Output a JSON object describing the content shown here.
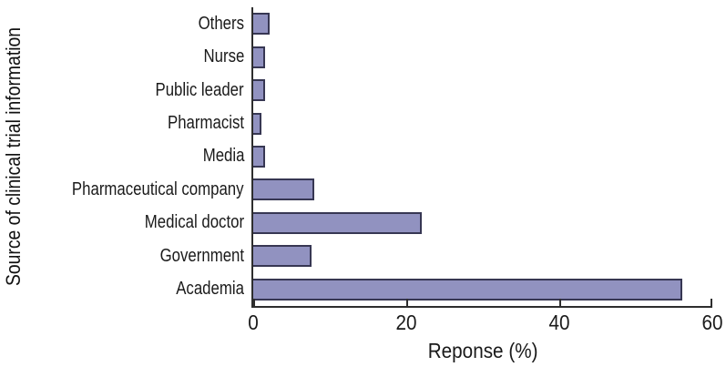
{
  "chart_data": {
    "type": "bar",
    "orientation": "horizontal",
    "title": "",
    "categories": [
      "Others",
      "Nurse",
      "Public leader",
      "Pharmacist",
      "Media",
      "Pharmaceutical company",
      "Medical doctor",
      "Government",
      "Academia"
    ],
    "values": [
      2.2,
      1.5,
      1.5,
      1.1,
      1.5,
      8.0,
      22.0,
      7.6,
      56.1
    ],
    "xlabel": "Reponse (%)",
    "ylabel": "Source of clinical trial information",
    "xlim": [
      0,
      60
    ],
    "xticks": [
      0,
      20,
      40,
      60
    ],
    "grid": false,
    "legend": "none",
    "colors": {
      "bar_fill": "#9192c0",
      "bar_border": "#373753",
      "axis": "#2e2e2e",
      "text": "#1a1a1a",
      "background": "#ffffff"
    }
  }
}
